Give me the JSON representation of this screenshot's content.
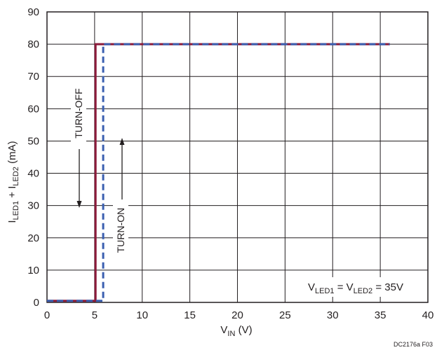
{
  "chart_data": {
    "type": "line",
    "xlabel": {
      "main": "V",
      "sub": "IN",
      "suffix": " (V)"
    },
    "ylabel": {
      "p1": "I",
      "s1": "LED1",
      "p2": " + I",
      "s2": "LED2",
      "p3": " (mA)"
    },
    "xlim": [
      0,
      40
    ],
    "ylim": [
      0,
      90
    ],
    "x_ticks": [
      0,
      5,
      10,
      15,
      20,
      25,
      30,
      35,
      40
    ],
    "y_ticks": [
      0,
      10,
      20,
      30,
      40,
      50,
      60,
      70,
      80,
      90
    ],
    "grid": true,
    "series": [
      {
        "name": "TURN-OFF",
        "color": "#8b1a3a",
        "style": "solid",
        "x": [
          0,
          5.1,
          5.1,
          36
        ],
        "y": [
          0.5,
          0.5,
          80,
          80
        ]
      },
      {
        "name": "TURN-ON",
        "color": "#3a5fb0",
        "style": "dashed",
        "x": [
          0,
          5.9,
          5.9,
          36
        ],
        "y": [
          0.5,
          0.5,
          80,
          80
        ]
      }
    ],
    "annotations": {
      "turn_off": "TURN-OFF",
      "turn_on": "TURN-ON",
      "condition": {
        "v1": "V",
        "s1": "LED1",
        "eq": " = V",
        "s2": "LED2",
        "tail": " = 35V"
      }
    }
  },
  "figure_code": "DC2176a F03"
}
